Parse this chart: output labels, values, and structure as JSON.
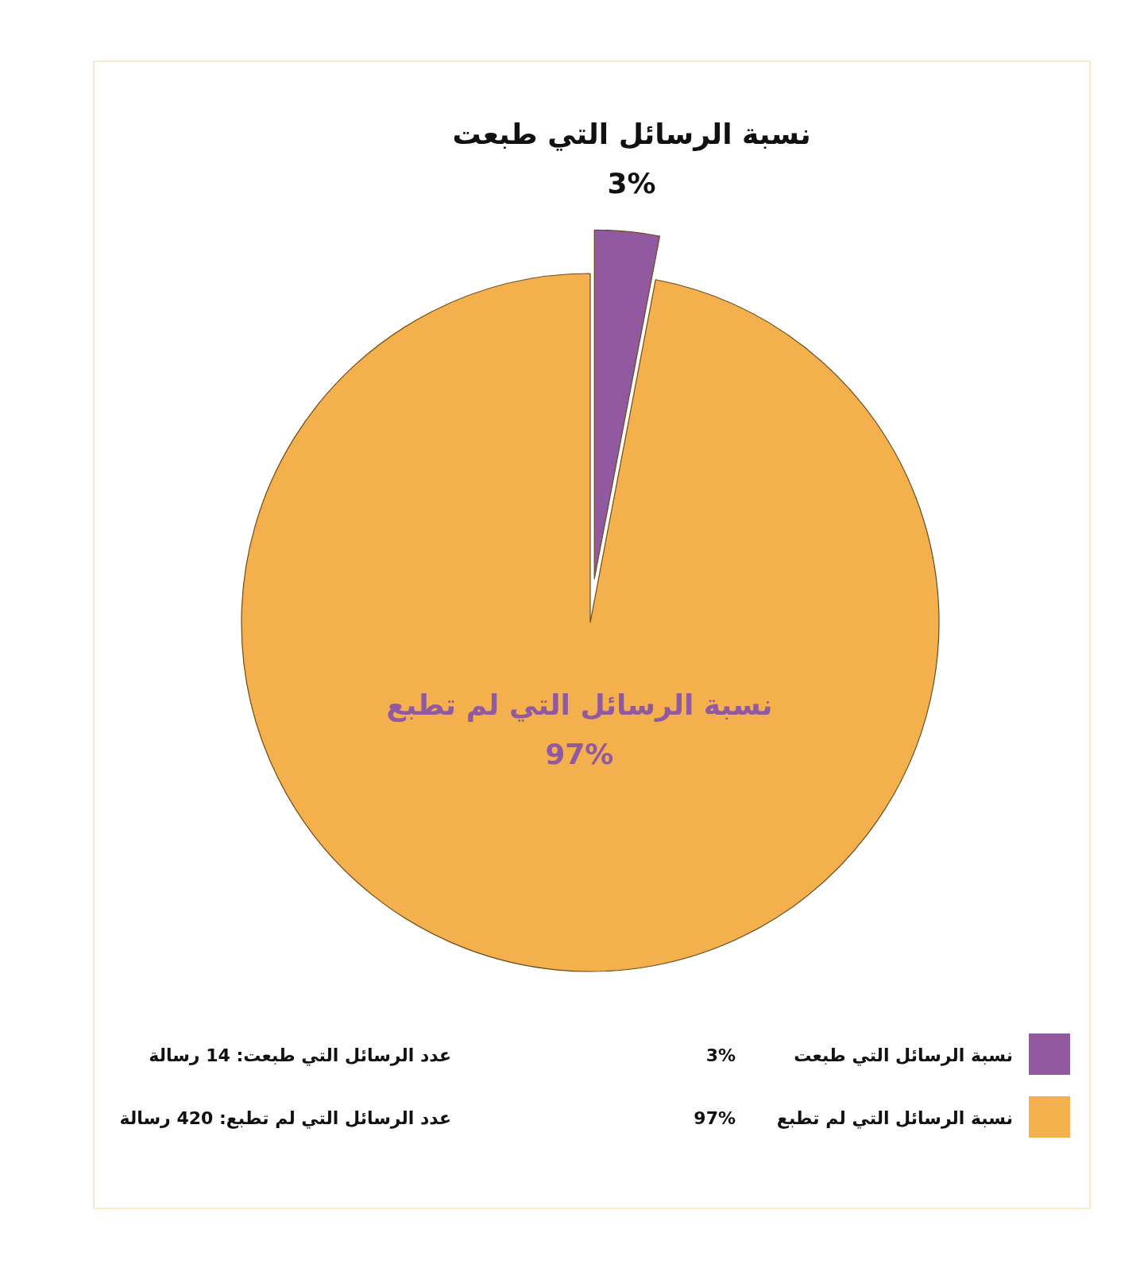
{
  "chart_data": {
    "type": "pie",
    "categories": [
      "نسبة الرسائل التي طبعت",
      "نسبة الرسائل التي لم تطبع"
    ],
    "values": [
      3,
      97
    ],
    "colors": [
      "#9159a0",
      "#f5b04e"
    ],
    "value_labels": [
      "3%",
      "97%"
    ],
    "legend": "bottom",
    "annotations": [
      "عدد الرسائل التي طبعت: 14 رسالة",
      "عدد الرسائل التي لم تطبع: 420 رسالة"
    ]
  }
}
